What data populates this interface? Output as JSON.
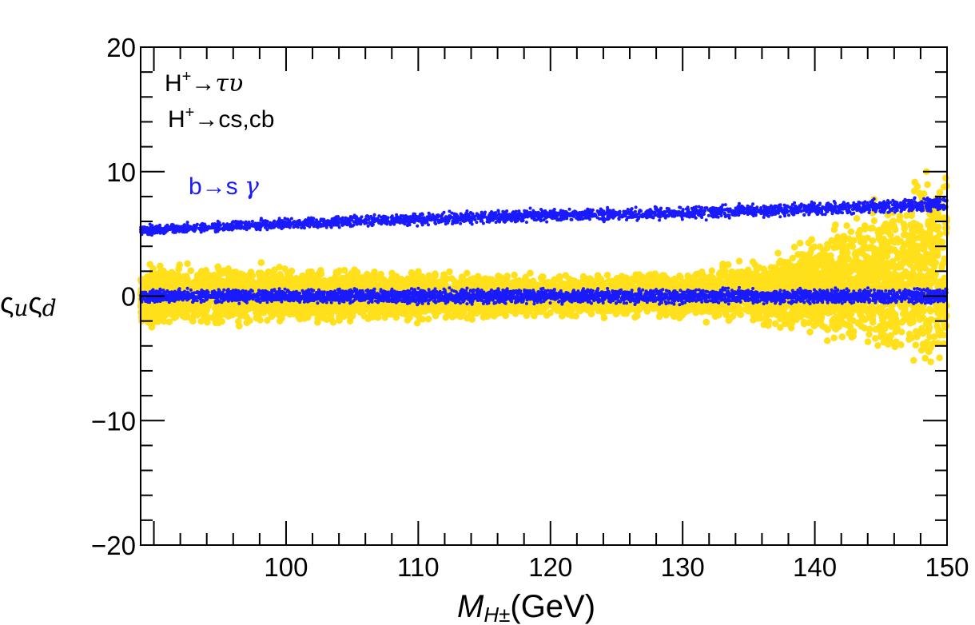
{
  "chart_data": {
    "type": "scatter",
    "title": "",
    "xlabel_main": "M",
    "xlabel_sub": "H±",
    "xlabel_unit": "(GeV)",
    "ylabel_parts": [
      "ς",
      "u",
      "ς",
      "d"
    ],
    "xlim": [
      89,
      150
    ],
    "ylim": [
      -20,
      20
    ],
    "x_ticks": [
      100,
      110,
      120,
      130,
      140,
      150
    ],
    "x_tick_labels": [
      "100",
      "110",
      "120",
      "130",
      "140",
      "150"
    ],
    "y_ticks": [
      -20,
      -10,
      0,
      10,
      20
    ],
    "y_tick_labels": [
      "−20",
      "−10",
      "0",
      "10",
      "20"
    ],
    "grid": false,
    "annotations": [
      {
        "base": "H",
        "sup": "+",
        "rest": "→",
        "tail": "τυ",
        "color": "#000000"
      },
      {
        "base": "H",
        "sup": "+",
        "rest": "→cs,cb",
        "tail": "",
        "color": "#000000"
      },
      {
        "base": "b→s ",
        "sup": "",
        "rest": "",
        "tail": "γ",
        "color": "#1a1aff"
      }
    ],
    "series": [
      {
        "name": "H+→τυ, H+→cs,cb allowed region",
        "color": "#ffe01a",
        "marker_size": 5.5,
        "band_center": [
          [
            89,
            0.0
          ],
          [
            120,
            0.0
          ],
          [
            135,
            0.3
          ],
          [
            140,
            0.8
          ],
          [
            145,
            1.5
          ],
          [
            150,
            2.0
          ]
        ],
        "band_halfwidth": [
          [
            89,
            2.6
          ],
          [
            100,
            2.4
          ],
          [
            110,
            2.0
          ],
          [
            120,
            1.6
          ],
          [
            130,
            1.9
          ],
          [
            135,
            2.6
          ],
          [
            140,
            4.2
          ],
          [
            143,
            5.6
          ],
          [
            146,
            7.2
          ],
          [
            150,
            9.2
          ]
        ],
        "points_per_unit_x": 150
      },
      {
        "name": "b→s γ allowed region (lower band)",
        "color": "#1a1aff",
        "marker_size": 3,
        "band_center": [
          [
            89,
            0.0
          ],
          [
            150,
            0.0
          ]
        ],
        "band_halfwidth": [
          [
            89,
            0.6
          ],
          [
            150,
            0.7
          ]
        ],
        "points_per_unit_x": 70
      },
      {
        "name": "b→s γ allowed region (upper band)",
        "color": "#1a1aff",
        "marker_size": 3,
        "band_center": [
          [
            89,
            5.3
          ],
          [
            100,
            5.8
          ],
          [
            110,
            6.2
          ],
          [
            120,
            6.5
          ],
          [
            130,
            6.7
          ],
          [
            140,
            7.0
          ],
          [
            150,
            7.4
          ]
        ],
        "band_halfwidth": [
          [
            89,
            0.45
          ],
          [
            150,
            0.65
          ]
        ],
        "points_per_unit_x": 45
      }
    ]
  }
}
